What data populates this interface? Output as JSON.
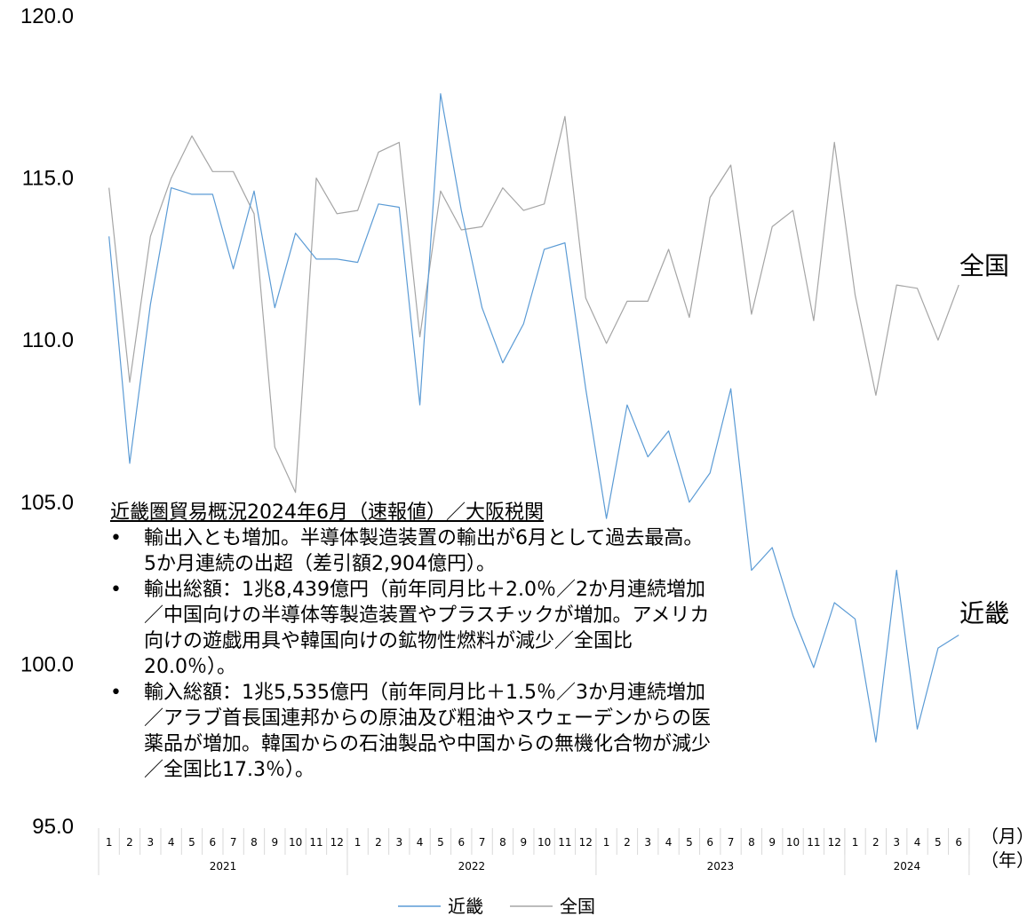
{
  "chart_data": {
    "type": "line",
    "title": "",
    "ylim": [
      95.0,
      120.0
    ],
    "yticks": [
      "95.0",
      "100.0",
      "105.0",
      "110.0",
      "115.0",
      "120.0"
    ],
    "x_month_labels": [
      "1",
      "2",
      "3",
      "4",
      "5",
      "6",
      "7",
      "8",
      "9",
      "10",
      "11",
      "12",
      "1",
      "2",
      "3",
      "4",
      "5",
      "6",
      "7",
      "8",
      "9",
      "10",
      "11",
      "12",
      "1",
      "2",
      "3",
      "4",
      "5",
      "6",
      "7",
      "8",
      "9",
      "10",
      "11",
      "12",
      "1",
      "2",
      "3",
      "4",
      "5",
      "6"
    ],
    "x_year_groups": [
      {
        "year": "2021",
        "months": 12
      },
      {
        "year": "2022",
        "months": 12
      },
      {
        "year": "2023",
        "months": 12
      },
      {
        "year": "2024",
        "months": 6
      }
    ],
    "x_unit_month": "（月）",
    "x_unit_year": "（年）",
    "grid": false,
    "legend_position": "bottom",
    "series": [
      {
        "name": "近畿",
        "color": "#5b9bd5",
        "end_label": "近畿",
        "values": [
          113.2,
          106.2,
          111.1,
          114.7,
          114.5,
          114.5,
          112.2,
          114.6,
          111.0,
          113.3,
          112.5,
          112.5,
          112.4,
          114.2,
          114.1,
          108.0,
          117.6,
          114.0,
          111.0,
          109.3,
          110.5,
          112.8,
          113.0,
          108.5,
          104.5,
          108.0,
          106.4,
          107.2,
          105.0,
          105.9,
          108.5,
          102.9,
          103.6,
          101.5,
          99.9,
          101.9,
          101.4,
          97.6,
          102.9,
          98.0,
          100.5,
          100.9
        ]
      },
      {
        "name": "全国",
        "color": "#a5a5a5",
        "end_label": "全国",
        "values": [
          114.7,
          108.7,
          113.2,
          115.0,
          116.3,
          115.2,
          115.2,
          113.9,
          106.7,
          105.3,
          115.0,
          113.9,
          114.0,
          115.8,
          116.1,
          110.1,
          114.6,
          113.4,
          113.5,
          114.7,
          114.0,
          114.2,
          116.9,
          111.3,
          109.9,
          111.2,
          111.2,
          112.8,
          110.7,
          114.4,
          115.4,
          110.8,
          113.5,
          114.0,
          110.6,
          116.1,
          111.4,
          108.3,
          111.7,
          111.6,
          110.0,
          111.7
        ]
      }
    ]
  },
  "annotation": {
    "title": "近畿圏貿易概況2024年6月（速報値）／大阪税関",
    "bullets": [
      "輸出入とも増加。半導体製造装置の輸出が6月として過去最高。5か月連続の出超（差引額2,904億円）。",
      "輸出総額：1兆8,439億円（前年同月比＋2.0％／2か月連続増加／中国向けの半導体等製造装置やプラスチックが増加。アメリカ向けの遊戯用具や韓国向けの鉱物性燃料が減少／全国比20.0％）。",
      "輸入総額：1兆5,535億円（前年同月比＋1.5％／3か月連続増加／アラブ首長国連邦からの原油及び粗油やスウェーデンからの医薬品が増加。韓国からの石油製品や中国からの無機化合物が減少／全国比17.3％）。"
    ],
    "bullet_symbol": "•"
  }
}
